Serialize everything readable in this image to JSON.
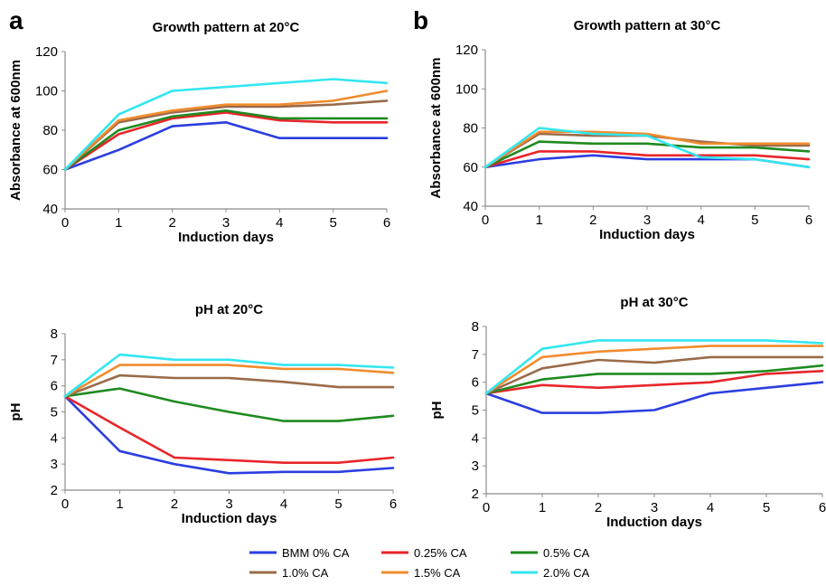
{
  "figure": {
    "panel_labels": [
      "a",
      "b"
    ],
    "legend": [
      {
        "name": "BMM 0% CA",
        "color": "#2b3ee0"
      },
      {
        "name": "0.25% CA",
        "color": "#e8252a"
      },
      {
        "name": "0.5% CA",
        "color": "#1f8a1f"
      },
      {
        "name": "1.0% CA",
        "color": "#9a6b4a"
      },
      {
        "name": "1.5% CA",
        "color": "#f08c2e"
      },
      {
        "name": "2.0% CA",
        "color": "#33e6f0"
      }
    ]
  },
  "chart_data": [
    {
      "type": "line",
      "title": "Growth pattern at 20°C",
      "xlabel": "Induction days",
      "ylabel": "Absorbance at 600nm",
      "x": [
        0,
        1,
        2,
        3,
        4,
        5,
        6
      ],
      "xlim": [
        0,
        6
      ],
      "ylim": [
        40,
        120
      ],
      "yticks": [
        40,
        60,
        80,
        100,
        120
      ],
      "series": [
        {
          "name": "BMM 0% CA",
          "color": "#2b3ee0",
          "values": [
            60,
            70,
            82,
            84,
            76,
            76,
            76
          ]
        },
        {
          "name": "0.25% CA",
          "color": "#e8252a",
          "values": [
            60,
            78,
            86,
            89,
            85,
            84,
            84
          ]
        },
        {
          "name": "0.5% CA",
          "color": "#1f8a1f",
          "values": [
            60,
            80,
            87,
            90,
            86,
            86,
            86
          ]
        },
        {
          "name": "1.0% CA",
          "color": "#9a6b4a",
          "values": [
            60,
            84,
            89,
            92,
            92,
            93,
            95
          ]
        },
        {
          "name": "1.5% CA",
          "color": "#f08c2e",
          "values": [
            60,
            85,
            90,
            93,
            93,
            95,
            100
          ]
        },
        {
          "name": "2.0% CA",
          "color": "#33e6f0",
          "values": [
            60,
            88,
            100,
            102,
            104,
            106,
            104
          ]
        }
      ]
    },
    {
      "type": "line",
      "title": "Growth pattern at 30°C",
      "xlabel": "Induction days",
      "ylabel": "Absorbance at 600nm",
      "x": [
        0,
        1,
        2,
        3,
        4,
        5,
        6
      ],
      "xlim": [
        0,
        6
      ],
      "ylim": [
        40,
        120
      ],
      "yticks": [
        40,
        60,
        80,
        100,
        120
      ],
      "series": [
        {
          "name": "BMM 0% CA",
          "color": "#2b3ee0",
          "values": [
            60,
            64,
            66,
            64,
            64,
            64,
            60
          ]
        },
        {
          "name": "0.25% CA",
          "color": "#e8252a",
          "values": [
            60,
            68,
            68,
            66,
            66,
            66,
            64
          ]
        },
        {
          "name": "0.5% CA",
          "color": "#1f8a1f",
          "values": [
            60,
            73,
            72,
            72,
            70,
            70,
            68
          ]
        },
        {
          "name": "1.0% CA",
          "color": "#9a6b4a",
          "values": [
            60,
            77,
            76,
            76,
            73,
            71,
            71
          ]
        },
        {
          "name": "1.5% CA",
          "color": "#f08c2e",
          "values": [
            60,
            78,
            78,
            77,
            72,
            72,
            72
          ]
        },
        {
          "name": "2.0% CA",
          "color": "#33e6f0",
          "values": [
            60,
            80,
            77,
            76,
            65,
            64,
            60
          ]
        }
      ]
    },
    {
      "type": "line",
      "title": "pH at 20°C",
      "xlabel": "Induction days",
      "ylabel": "pH",
      "x": [
        0,
        1,
        2,
        3,
        4,
        5,
        6
      ],
      "xlim": [
        0,
        6
      ],
      "ylim": [
        2,
        8
      ],
      "yticks": [
        2,
        3,
        4,
        5,
        6,
        7,
        8
      ],
      "series": [
        {
          "name": "BMM 0% CA",
          "color": "#2b3ee0",
          "values": [
            5.6,
            3.5,
            3.0,
            2.65,
            2.7,
            2.7,
            2.85
          ]
        },
        {
          "name": "0.25% CA",
          "color": "#e8252a",
          "values": [
            5.6,
            4.4,
            3.25,
            3.15,
            3.05,
            3.05,
            3.25
          ]
        },
        {
          "name": "0.5% CA",
          "color": "#1f8a1f",
          "values": [
            5.6,
            5.9,
            5.4,
            5.0,
            4.65,
            4.65,
            4.85
          ]
        },
        {
          "name": "1.0% CA",
          "color": "#9a6b4a",
          "values": [
            5.6,
            6.4,
            6.3,
            6.3,
            6.15,
            5.95,
            5.95
          ]
        },
        {
          "name": "1.5% CA",
          "color": "#f08c2e",
          "values": [
            5.6,
            6.8,
            6.8,
            6.8,
            6.65,
            6.65,
            6.5
          ]
        },
        {
          "name": "2.0% CA",
          "color": "#33e6f0",
          "values": [
            5.6,
            7.2,
            7.0,
            7.0,
            6.8,
            6.8,
            6.7
          ]
        }
      ]
    },
    {
      "type": "line",
      "title": "pH at 30°C",
      "xlabel": "Induction days",
      "ylabel": "pH",
      "x": [
        0,
        1,
        2,
        3,
        4,
        5,
        6
      ],
      "xlim": [
        0,
        6
      ],
      "ylim": [
        2,
        8
      ],
      "yticks": [
        2,
        3,
        4,
        5,
        6,
        7,
        8
      ],
      "series": [
        {
          "name": "BMM 0% CA",
          "color": "#2b3ee0",
          "values": [
            5.6,
            4.9,
            4.9,
            5.0,
            5.6,
            5.8,
            6.0
          ]
        },
        {
          "name": "0.25% CA",
          "color": "#e8252a",
          "values": [
            5.6,
            5.9,
            5.8,
            5.9,
            6.0,
            6.3,
            6.4
          ]
        },
        {
          "name": "0.5% CA",
          "color": "#1f8a1f",
          "values": [
            5.6,
            6.1,
            6.3,
            6.3,
            6.3,
            6.4,
            6.6
          ]
        },
        {
          "name": "1.0% CA",
          "color": "#9a6b4a",
          "values": [
            5.6,
            6.5,
            6.8,
            6.7,
            6.9,
            6.9,
            6.9
          ]
        },
        {
          "name": "1.5% CA",
          "color": "#f08c2e",
          "values": [
            5.6,
            6.9,
            7.1,
            7.2,
            7.3,
            7.3,
            7.3
          ]
        },
        {
          "name": "2.0% CA",
          "color": "#33e6f0",
          "values": [
            5.6,
            7.2,
            7.5,
            7.5,
            7.5,
            7.5,
            7.4
          ]
        }
      ]
    }
  ]
}
